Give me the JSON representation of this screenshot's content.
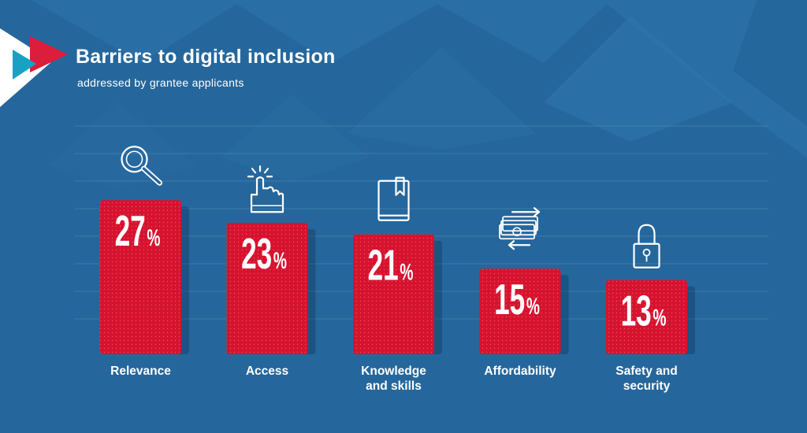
{
  "header": {
    "title": "Barriers to digital inclusion",
    "subtitle": "addressed by grantee applicants"
  },
  "colors": {
    "background": "#25679c",
    "bar": "#d7122e",
    "text": "#ffffff"
  },
  "chart_data": {
    "type": "bar",
    "title": "Barriers to digital inclusion",
    "subtitle": "addressed by grantee applicants",
    "categories": [
      "Relevance",
      "Access",
      "Knowledge and skills",
      "Affordability",
      "Safety and security"
    ],
    "category_lines": [
      [
        "Relevance"
      ],
      [
        "Access"
      ],
      [
        "Knowledge",
        "and skills"
      ],
      [
        "Affordability"
      ],
      [
        "Safety and",
        "security"
      ]
    ],
    "values": [
      27,
      23,
      21,
      15,
      13
    ],
    "value_labels": [
      "27",
      "23",
      "21",
      "15",
      "13"
    ],
    "unit": "%",
    "icons": [
      "magnifier-icon",
      "pointer-hand-icon",
      "book-icon",
      "money-icon",
      "padlock-icon"
    ],
    "ylim": [
      0,
      30
    ],
    "grid": true,
    "xlabel": "",
    "ylabel": ""
  }
}
